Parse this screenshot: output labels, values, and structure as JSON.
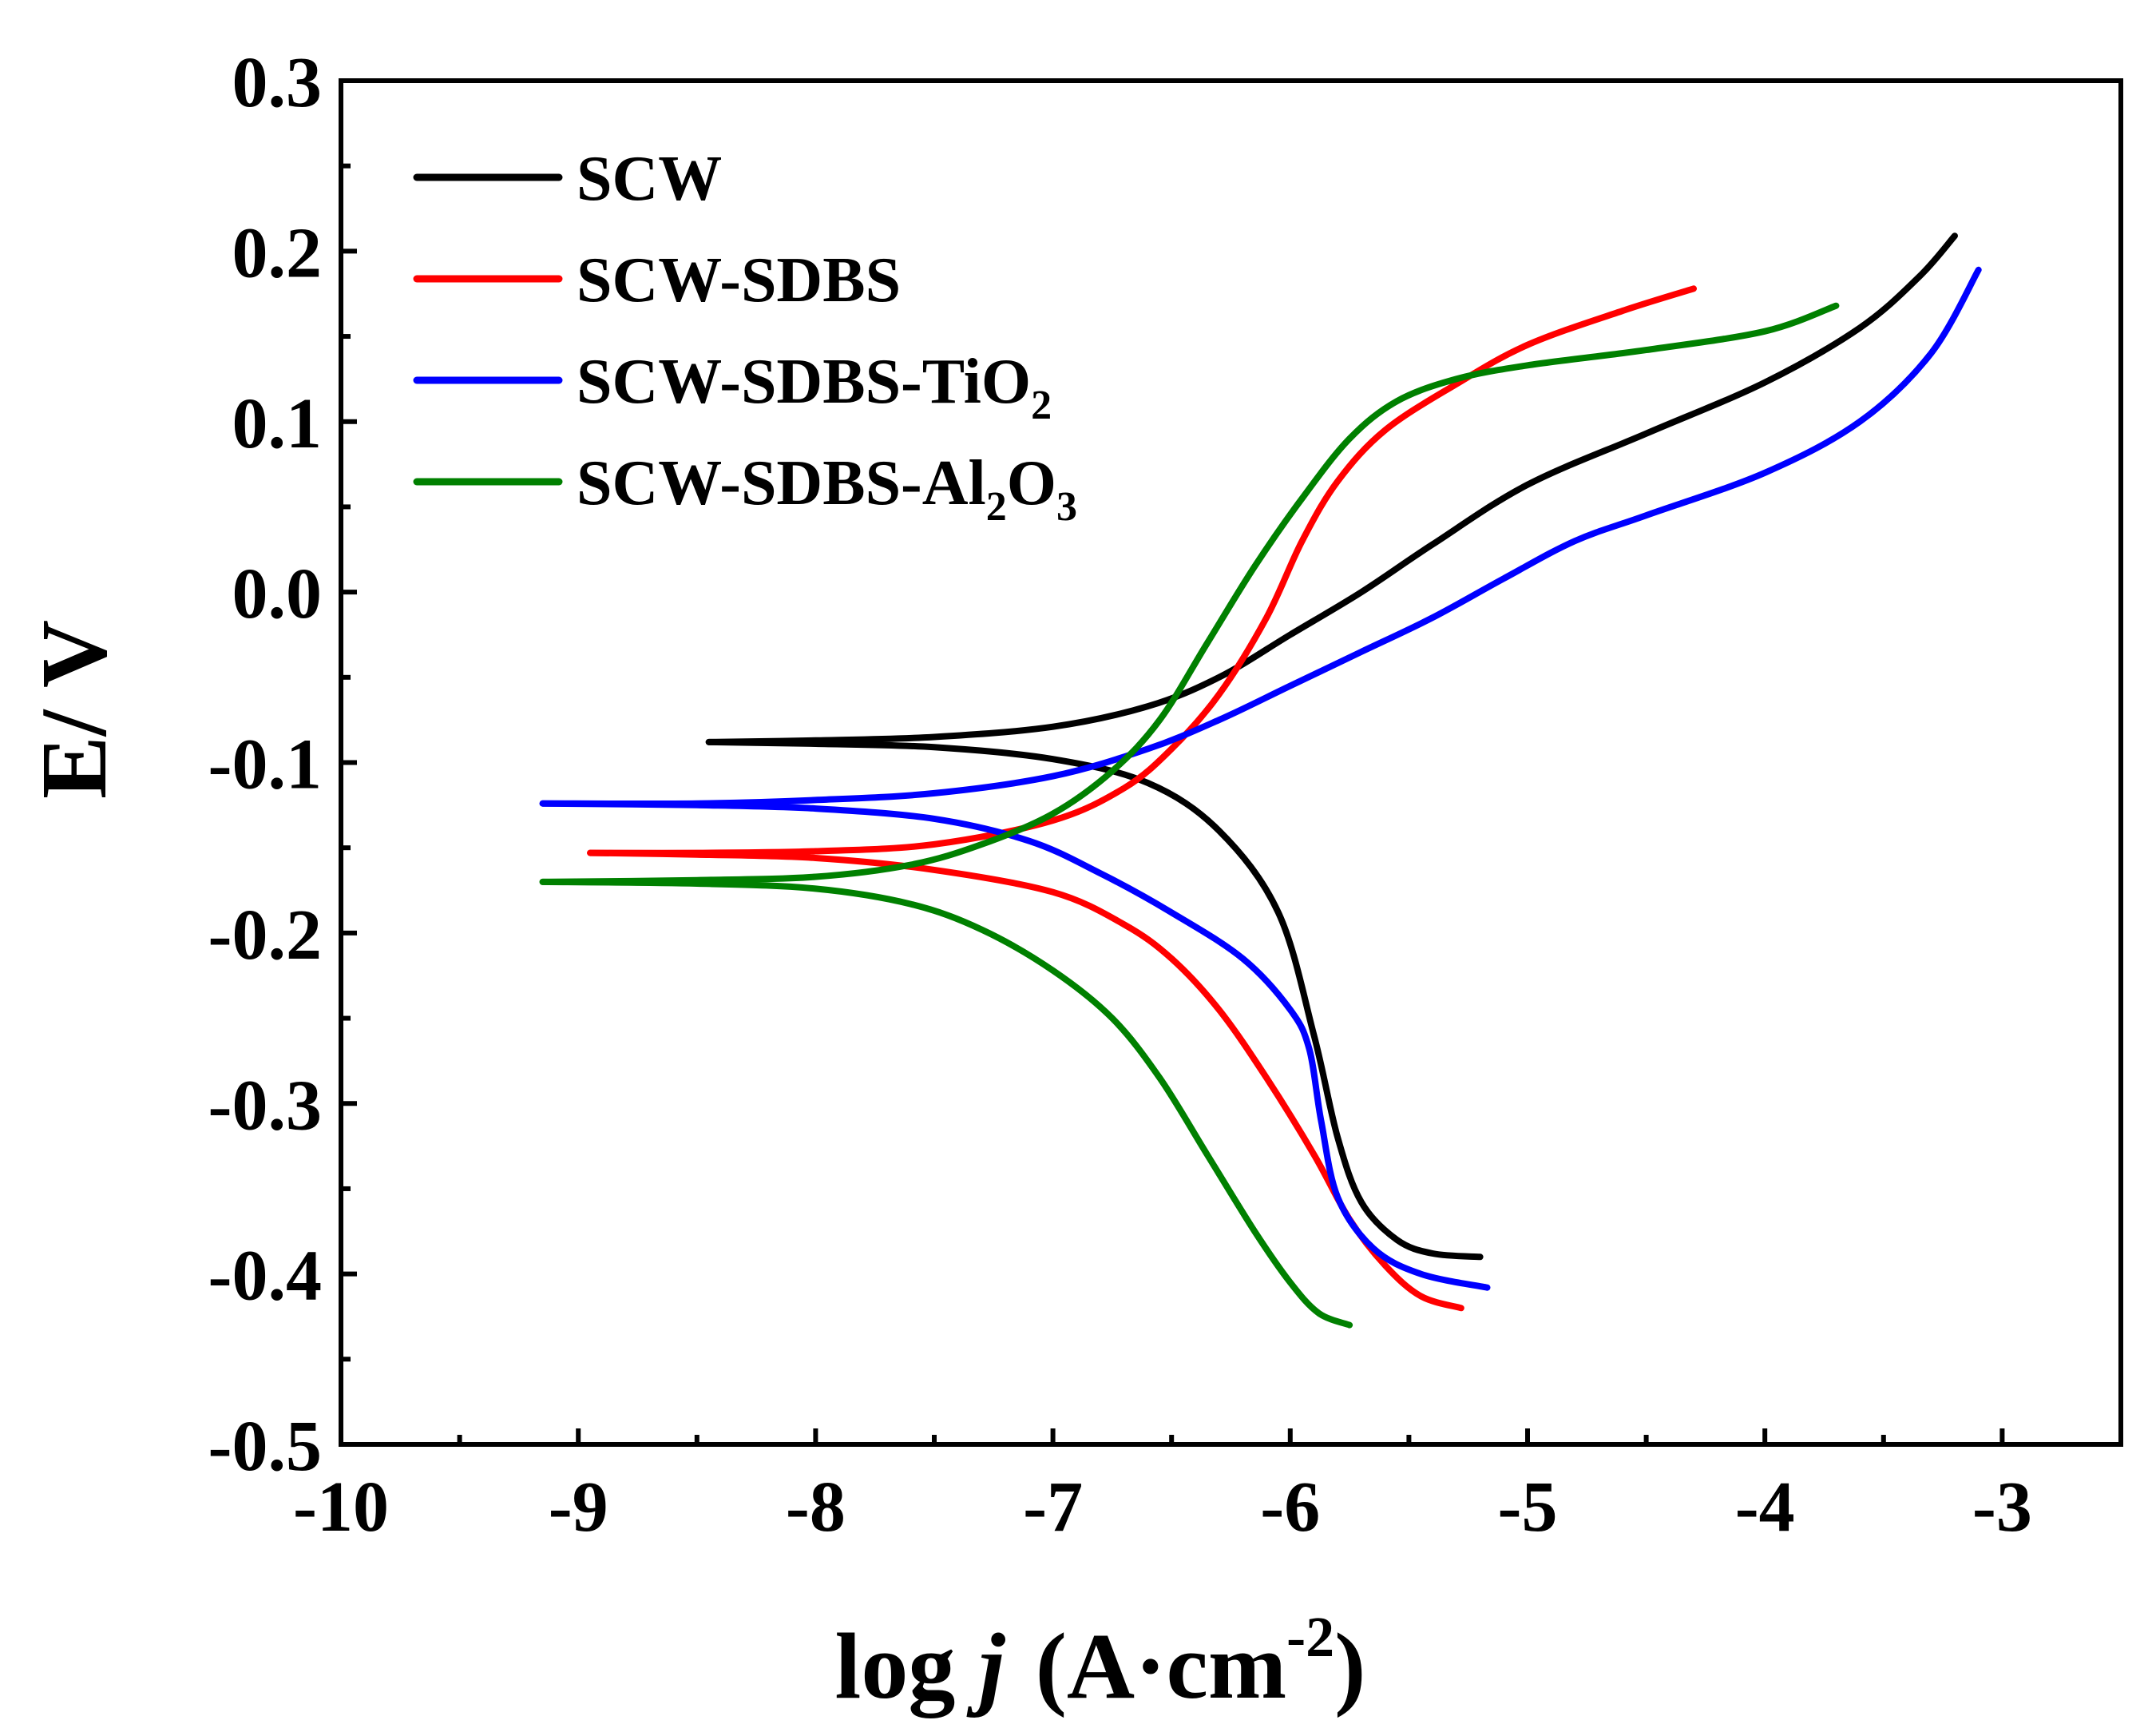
{
  "chart_data": {
    "type": "line",
    "title": "",
    "xlabel": {
      "prefix": "log ",
      "italic": "j",
      "units": "(A·cm",
      "superscript": "-2",
      "close": ")"
    },
    "ylabel": "E/ V",
    "xlim": [
      -10,
      -2.5
    ],
    "ylim": [
      -0.5,
      0.3
    ],
    "xticks": [
      -10,
      -9,
      -8,
      -7,
      -6,
      -5,
      -4,
      -3
    ],
    "xtick_labels": [
      "-10",
      "-9",
      "-8",
      "-7",
      "-6",
      "-5",
      "-4",
      "-3"
    ],
    "yticks": [
      -0.5,
      -0.4,
      -0.3,
      -0.2,
      -0.1,
      0.0,
      0.1,
      0.2,
      0.3
    ],
    "ytick_labels": [
      "-0.5",
      "-0.4",
      "-0.3",
      "-0.2",
      "-0.1",
      "0.0",
      "0.1",
      "0.2",
      "0.3"
    ],
    "grid": false,
    "legend_position": "top-left",
    "series": [
      {
        "name": "SCW",
        "legend": {
          "text": "SCW",
          "subs": []
        },
        "color": "#000000",
        "anodic": [
          [
            -8.45,
            -0.088
          ],
          [
            -8.0,
            -0.087
          ],
          [
            -7.5,
            -0.085
          ],
          [
            -7.0,
            -0.079
          ],
          [
            -6.6,
            -0.067
          ],
          [
            -6.3,
            -0.05
          ],
          [
            -6.0,
            -0.025
          ],
          [
            -5.7,
            0.0
          ],
          [
            -5.4,
            0.028
          ],
          [
            -5.0,
            0.063
          ],
          [
            -4.5,
            0.093
          ],
          [
            -4.0,
            0.123
          ],
          [
            -3.6,
            0.155
          ],
          [
            -3.35,
            0.185
          ],
          [
            -3.2,
            0.209
          ]
        ],
        "cathodic": [
          [
            -8.45,
            -0.088
          ],
          [
            -8.0,
            -0.089
          ],
          [
            -7.5,
            -0.091
          ],
          [
            -7.0,
            -0.098
          ],
          [
            -6.6,
            -0.112
          ],
          [
            -6.3,
            -0.14
          ],
          [
            -6.05,
            -0.188
          ],
          [
            -5.9,
            -0.26
          ],
          [
            -5.8,
            -0.32
          ],
          [
            -5.7,
            -0.358
          ],
          [
            -5.55,
            -0.38
          ],
          [
            -5.4,
            -0.388
          ],
          [
            -5.2,
            -0.39
          ]
        ]
      },
      {
        "name": "SCW-SDBS",
        "legend": {
          "text": "SCW-SDBS",
          "subs": []
        },
        "color": "#ff0000",
        "anodic": [
          [
            -8.95,
            -0.153
          ],
          [
            -8.5,
            -0.153
          ],
          [
            -8.0,
            -0.152
          ],
          [
            -7.5,
            -0.148
          ],
          [
            -7.0,
            -0.134
          ],
          [
            -6.7,
            -0.115
          ],
          [
            -6.5,
            -0.092
          ],
          [
            -6.3,
            -0.06
          ],
          [
            -6.1,
            -0.015
          ],
          [
            -5.95,
            0.03
          ],
          [
            -5.8,
            0.065
          ],
          [
            -5.6,
            0.095
          ],
          [
            -5.3,
            0.122
          ],
          [
            -5.0,
            0.145
          ],
          [
            -4.6,
            0.165
          ],
          [
            -4.3,
            0.178
          ]
        ],
        "cathodic": [
          [
            -8.95,
            -0.153
          ],
          [
            -8.5,
            -0.154
          ],
          [
            -8.0,
            -0.156
          ],
          [
            -7.5,
            -0.163
          ],
          [
            -7.0,
            -0.176
          ],
          [
            -6.7,
            -0.195
          ],
          [
            -6.5,
            -0.215
          ],
          [
            -6.3,
            -0.245
          ],
          [
            -6.1,
            -0.285
          ],
          [
            -5.9,
            -0.33
          ],
          [
            -5.75,
            -0.368
          ],
          [
            -5.6,
            -0.395
          ],
          [
            -5.45,
            -0.413
          ],
          [
            -5.28,
            -0.42
          ]
        ]
      },
      {
        "name": "SCW-SDBS-TiO2",
        "legend": {
          "text": "SCW-SDBS-TiO",
          "subs": [
            "2"
          ]
        },
        "color": "#0000ff",
        "anodic": [
          [
            -9.15,
            -0.124
          ],
          [
            -8.5,
            -0.124
          ],
          [
            -8.0,
            -0.122
          ],
          [
            -7.5,
            -0.118
          ],
          [
            -7.0,
            -0.108
          ],
          [
            -6.6,
            -0.092
          ],
          [
            -6.3,
            -0.075
          ],
          [
            -6.0,
            -0.055
          ],
          [
            -5.7,
            -0.035
          ],
          [
            -5.4,
            -0.015
          ],
          [
            -5.1,
            0.008
          ],
          [
            -4.8,
            0.03
          ],
          [
            -4.5,
            0.045
          ],
          [
            -4.0,
            0.07
          ],
          [
            -3.6,
            0.1
          ],
          [
            -3.3,
            0.14
          ],
          [
            -3.1,
            0.189
          ]
        ],
        "cathodic": [
          [
            -9.15,
            -0.124
          ],
          [
            -8.5,
            -0.125
          ],
          [
            -8.0,
            -0.127
          ],
          [
            -7.5,
            -0.133
          ],
          [
            -7.1,
            -0.146
          ],
          [
            -6.8,
            -0.165
          ],
          [
            -6.5,
            -0.188
          ],
          [
            -6.2,
            -0.215
          ],
          [
            -6.0,
            -0.245
          ],
          [
            -5.92,
            -0.268
          ],
          [
            -5.87,
            -0.31
          ],
          [
            -5.8,
            -0.355
          ],
          [
            -5.65,
            -0.385
          ],
          [
            -5.45,
            -0.4
          ],
          [
            -5.17,
            -0.408
          ]
        ]
      },
      {
        "name": "SCW-SDBS-Al2O3",
        "legend": {
          "text": "SCW-SDBS-Al",
          "subs": [
            "2",
            "O",
            "3"
          ]
        },
        "color": "#008000",
        "anodic": [
          [
            -9.15,
            -0.17
          ],
          [
            -8.5,
            -0.169
          ],
          [
            -8.0,
            -0.167
          ],
          [
            -7.6,
            -0.16
          ],
          [
            -7.3,
            -0.148
          ],
          [
            -7.0,
            -0.13
          ],
          [
            -6.75,
            -0.105
          ],
          [
            -6.55,
            -0.075
          ],
          [
            -6.35,
            -0.03
          ],
          [
            -6.15,
            0.015
          ],
          [
            -5.95,
            0.055
          ],
          [
            -5.75,
            0.09
          ],
          [
            -5.55,
            0.112
          ],
          [
            -5.3,
            0.125
          ],
          [
            -5.0,
            0.133
          ],
          [
            -4.5,
            0.142
          ],
          [
            -4.0,
            0.153
          ],
          [
            -3.7,
            0.168
          ]
        ],
        "cathodic": [
          [
            -9.15,
            -0.17
          ],
          [
            -8.5,
            -0.171
          ],
          [
            -8.0,
            -0.174
          ],
          [
            -7.6,
            -0.183
          ],
          [
            -7.3,
            -0.198
          ],
          [
            -7.0,
            -0.222
          ],
          [
            -6.75,
            -0.25
          ],
          [
            -6.55,
            -0.285
          ],
          [
            -6.35,
            -0.33
          ],
          [
            -6.15,
            -0.375
          ],
          [
            -6.0,
            -0.405
          ],
          [
            -5.88,
            -0.423
          ],
          [
            -5.75,
            -0.43
          ]
        ]
      }
    ]
  }
}
